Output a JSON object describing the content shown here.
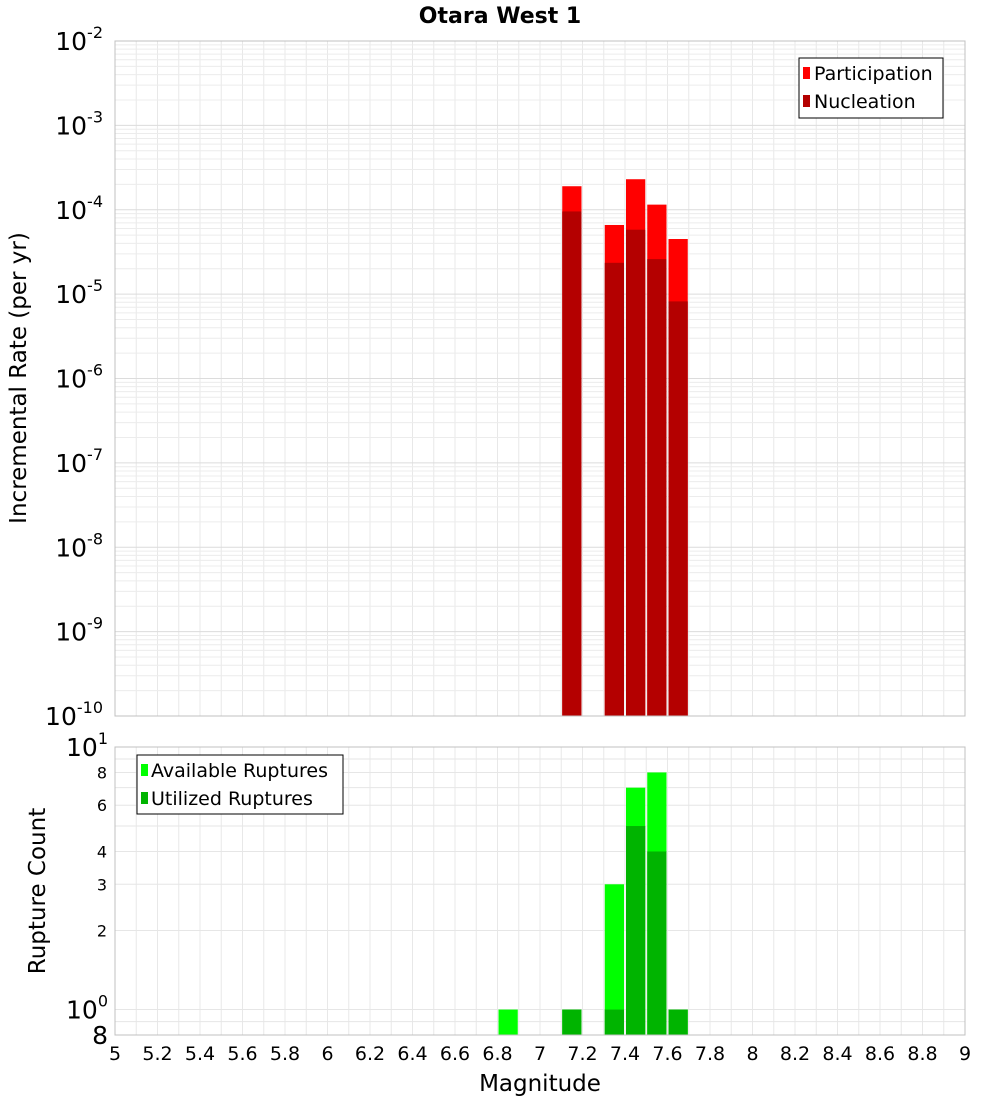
{
  "chart_data": [
    {
      "type": "bar",
      "title": "Otara West 1",
      "xlabel": "Magnitude",
      "ylabel": "Incremental Rate (per yr)",
      "yscale": "log",
      "xlim": [
        5,
        9
      ],
      "ylim": [
        1e-10,
        0.01
      ],
      "y_tick_labels": [
        {
          "value": 0.01,
          "base": "10",
          "exp": "-2"
        },
        {
          "value": 0.001,
          "base": "10",
          "exp": "-3"
        },
        {
          "value": 0.0001,
          "base": "10",
          "exp": "-4"
        },
        {
          "value": 1e-05,
          "base": "10",
          "exp": "-5"
        },
        {
          "value": 1e-06,
          "base": "10",
          "exp": "-6"
        },
        {
          "value": 1e-07,
          "base": "10",
          "exp": "-7"
        },
        {
          "value": 1e-08,
          "base": "10",
          "exp": "-8"
        },
        {
          "value": 1e-09,
          "base": "10",
          "exp": "-9"
        },
        {
          "value": 1e-10,
          "base": "10",
          "exp": "-10"
        }
      ],
      "legend_position": "top-right",
      "series": [
        {
          "name": "Participation",
          "color": "#ff0000",
          "x": [
            7.15,
            7.35,
            7.45,
            7.55,
            7.65
          ],
          "values": [
            0.00019,
            6.6e-05,
            0.00023,
            0.000115,
            4.5e-05
          ]
        },
        {
          "name": "Nucleation",
          "color": "#b40000",
          "x": [
            7.15,
            7.35,
            7.45,
            7.55,
            7.65
          ],
          "values": [
            9.55e-05,
            2.35e-05,
            5.8e-05,
            2.6e-05,
            8.2e-06
          ]
        }
      ]
    },
    {
      "type": "bar",
      "xlabel": "Magnitude",
      "ylabel": "Rupture Count",
      "yscale": "log",
      "xlim": [
        5,
        9
      ],
      "ylim": [
        0.8,
        10
      ],
      "x_tick_labels": [
        "5",
        "5.2",
        "5.4",
        "5.6",
        "5.8",
        "6",
        "6.2",
        "6.4",
        "6.6",
        "6.8",
        "7",
        "7.2",
        "7.4",
        "7.6",
        "7.8",
        "8",
        "8.2",
        "8.4",
        "8.6",
        "8.8",
        "9"
      ],
      "y_tick_labels": [
        {
          "value": 10,
          "base": "10",
          "exp": "1"
        },
        {
          "value": 8,
          "label": "8"
        },
        {
          "value": 6,
          "label": "6"
        },
        {
          "value": 4,
          "label": "4"
        },
        {
          "value": 3,
          "label": "3"
        },
        {
          "value": 2,
          "label": "2"
        },
        {
          "value": 1,
          "base": "10",
          "exp": "0"
        },
        {
          "value": 0.8,
          "label": "8"
        }
      ],
      "legend_position": "top-left",
      "series": [
        {
          "name": "Available Ruptures",
          "color": "#00ff00",
          "x": [
            6.85,
            7.15,
            7.35,
            7.45,
            7.55,
            7.65
          ],
          "values": [
            1,
            1,
            3,
            7,
            8,
            1
          ]
        },
        {
          "name": "Utilized Ruptures",
          "color": "#00b400",
          "x": [
            6.85,
            7.15,
            7.35,
            7.45,
            7.55,
            7.65
          ],
          "values": [
            0,
            1,
            1,
            5,
            4,
            1
          ]
        }
      ]
    }
  ]
}
